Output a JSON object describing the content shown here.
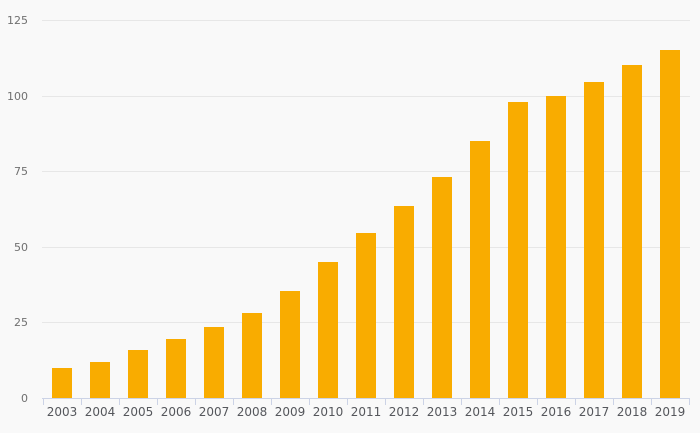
{
  "chart_data": {
    "type": "bar",
    "title": "",
    "categories": [
      "2003",
      "2004",
      "2005",
      "2006",
      "2007",
      "2008",
      "2009",
      "2010",
      "2011",
      "2012",
      "2013",
      "2014",
      "2015",
      "2016",
      "2017",
      "2018",
      "2019"
    ],
    "values": [
      10,
      12,
      16,
      19.5,
      23.5,
      28,
      35.5,
      45,
      54.5,
      63.5,
      73,
      85,
      98,
      100,
      104.5,
      110,
      115
    ],
    "xlabel": "",
    "ylabel": "",
    "y_ticks": [
      0,
      25,
      50,
      75,
      100,
      125
    ],
    "ylim": [
      0,
      125
    ],
    "grid": true,
    "legend_position": "none"
  },
  "colors": {
    "bar": "#F9AC00",
    "background": "#F9F9F9",
    "gridline": "#E7E7E7",
    "axis": "#CCD3E6",
    "y_tick_label": "#707070",
    "x_tick_label": "#55575C"
  }
}
